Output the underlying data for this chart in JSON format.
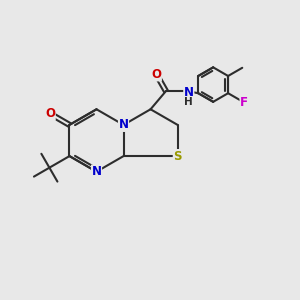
{
  "background_color": "#e8e8e8",
  "bond_color": "#2d2d2d",
  "bond_width": 1.5,
  "figsize": [
    3.0,
    3.0
  ],
  "dpi": 100,
  "atom_colors": {
    "N": "#0000cc",
    "O": "#cc0000",
    "S": "#999900",
    "F": "#cc00cc",
    "C": "#2d2d2d"
  }
}
